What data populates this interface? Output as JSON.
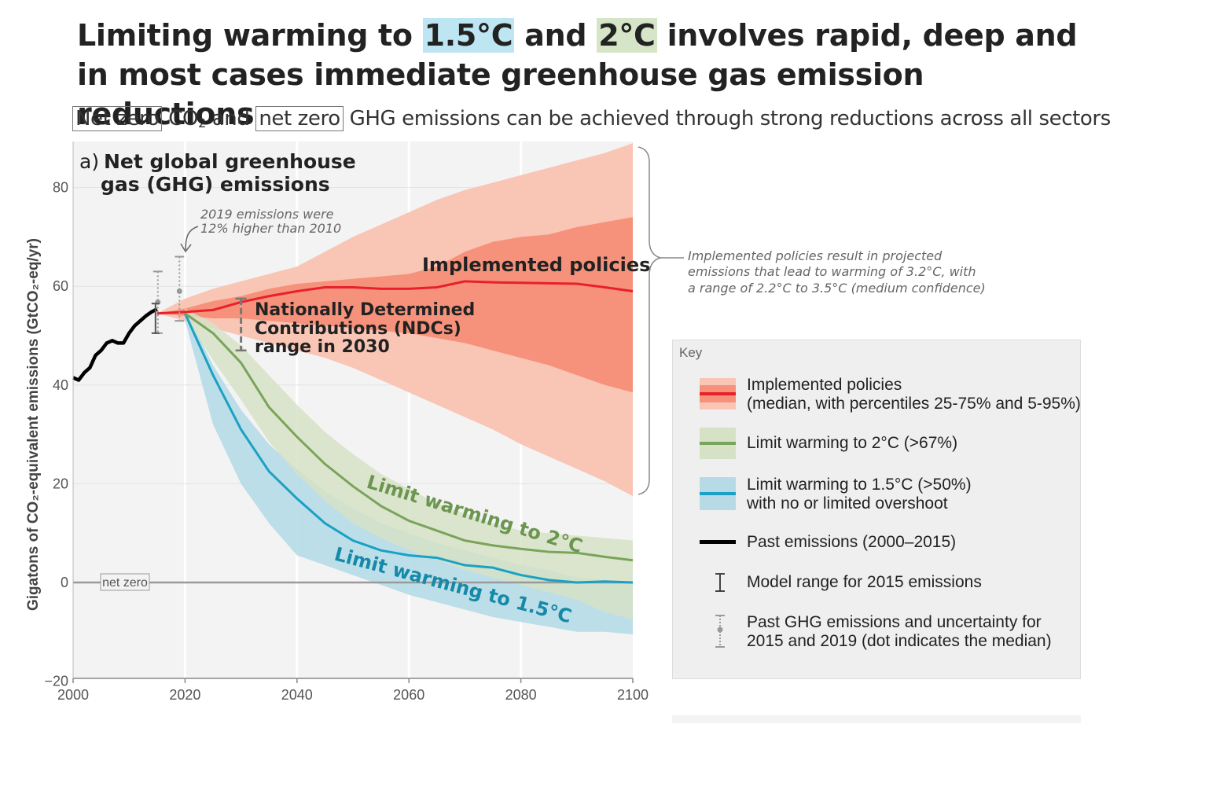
{
  "title": {
    "part1": "Limiting warming to ",
    "hl1": "1.5°C",
    "part2": " and ",
    "hl2": "2°C",
    "part3": " involves rapid, deep and",
    "line2": "in most cases immediate greenhouse gas emission reductions"
  },
  "subtitle": {
    "box1": "Net zero",
    "co2": "CO",
    "co2_sub": "2",
    "mid": " and ",
    "box2": "net zero",
    "rest": " GHG emissions can be achieved through strong reductions across all sectors"
  },
  "panel": {
    "label_prefix": "a)",
    "label_line1": "Net global greenhouse",
    "label_line2": "gas (GHG) emissions"
  },
  "annotations": {
    "emissions_2019_line1": "2019 emissions were",
    "emissions_2019_line2": "12% higher than 2010",
    "implemented_policies": "Implemented policies",
    "ndc_line1": "Nationally Determined",
    "ndc_line2": "Contributions (NDCs)",
    "ndc_line3": "range in 2030",
    "limit_2c": "Limit warming to 2°C",
    "limit_15c": "Limit warming to 1.5°C",
    "net_zero": "net zero",
    "brace_line1": "Implemented policies result in projected",
    "brace_line2": "emissions that lead to warming of 3.2°C, with",
    "brace_line3": "a range of 2.2°C to 3.5°C (medium confidence)"
  },
  "key": {
    "title": "Key",
    "items": [
      {
        "line1": "Implemented policies",
        "line2": "(median, with percentiles 25-75% and 5-95%)"
      },
      {
        "line1": "Limit warming to 2°C (>67%)",
        "line2": ""
      },
      {
        "line1": "Limit warming to 1.5°C (>50%)",
        "line2": "with no or limited overshoot"
      },
      {
        "line1": "Past emissions (2000–2015)",
        "line2": ""
      },
      {
        "line1": "Model range for 2015 emissions",
        "line2": ""
      },
      {
        "line1": "Past GHG emissions and uncertainty for",
        "line2": "2015 and 2019 (dot indicates the median)"
      }
    ]
  },
  "colors": {
    "policy_outer": "#f9c5b4",
    "policy_inner": "#f6927b",
    "policy_line": "#e8202a",
    "c2_band": "#d6e2c6",
    "c2_line": "#79a45a",
    "c15_band": "#b6dbe7",
    "c15_line": "#1ba1c3",
    "c2_label": "#6c9650",
    "c15_label": "#158aa8",
    "past": "#000000"
  },
  "chart_data": {
    "type": "area",
    "xlabel": "",
    "ylabel": "Gigatons of CO₂-equivalent emissions (GtCO₂-eq/yr)",
    "xlim": [
      2000,
      2100
    ],
    "ylim": [
      -20,
      90
    ],
    "xticks": [
      2000,
      2020,
      2040,
      2060,
      2080,
      2100
    ],
    "yticks": [
      -20,
      0,
      20,
      40,
      60,
      80
    ],
    "grid": true,
    "legend": "right",
    "past_emissions": {
      "x": [
        2000,
        2001,
        2002,
        2003,
        2004,
        2005,
        2006,
        2007,
        2008,
        2009,
        2010,
        2011,
        2012,
        2013,
        2014,
        2015
      ],
      "y": [
        41.5,
        41,
        42.5,
        43.5,
        46,
        47,
        48.5,
        49,
        48.5,
        48.5,
        50.5,
        52,
        53,
        54,
        54.8,
        55.4
      ]
    },
    "implemented_policies": {
      "x": [
        2015,
        2020,
        2025,
        2030,
        2035,
        2040,
        2045,
        2050,
        2055,
        2060,
        2065,
        2070,
        2075,
        2080,
        2085,
        2090,
        2095,
        2100
      ],
      "median": [
        54.5,
        54.8,
        55.2,
        56.8,
        58,
        59,
        59.8,
        59.8,
        59.5,
        59.5,
        59.8,
        61,
        60.8,
        60.7,
        60.6,
        60.5,
        59.8,
        59
      ],
      "p25": [
        54.5,
        54,
        53.5,
        53.5,
        53,
        52.5,
        52,
        51.5,
        51,
        50.5,
        49.5,
        48.5,
        47,
        45.5,
        44,
        42,
        40,
        38.5
      ],
      "p75": [
        54.5,
        55.5,
        57,
        58,
        59.5,
        60.5,
        61,
        61.5,
        62,
        62.5,
        64,
        67,
        69,
        70,
        70.5,
        72,
        73,
        74
      ],
      "p5": [
        54.5,
        53,
        51.5,
        50,
        48.5,
        47,
        45.5,
        43.5,
        41,
        38.5,
        36,
        33.5,
        31,
        28,
        25.5,
        23,
        20.5,
        17.5
      ],
      "p95": [
        54.5,
        57.5,
        59.5,
        61,
        62.5,
        64,
        67,
        70,
        72.5,
        75,
        77.5,
        79.5,
        81,
        82.5,
        84,
        85.5,
        87,
        89
      ]
    },
    "limit_2c": {
      "x": [
        2020,
        2025,
        2030,
        2035,
        2040,
        2045,
        2050,
        2055,
        2060,
        2065,
        2070,
        2075,
        2080,
        2085,
        2090,
        2095,
        2100
      ],
      "median": [
        54.5,
        50.5,
        44.5,
        35.5,
        29.5,
        24,
        19.5,
        15.5,
        12.5,
        10.5,
        8.5,
        7.5,
        6.8,
        6.2,
        6,
        5.2,
        4.5
      ],
      "low": [
        54,
        45,
        37,
        28.5,
        22,
        16.5,
        12,
        9,
        6.5,
        4.5,
        2.5,
        1,
        -0.5,
        -2,
        -3.5,
        -6,
        -7.5
      ],
      "high": [
        55.5,
        52.5,
        48,
        42,
        36,
        30.5,
        26,
        22,
        19,
        16,
        14,
        12,
        10.5,
        10,
        9.5,
        9,
        8.5
      ]
    },
    "limit_15c": {
      "x": [
        2020,
        2025,
        2030,
        2035,
        2040,
        2045,
        2050,
        2055,
        2060,
        2065,
        2070,
        2075,
        2080,
        2085,
        2090,
        2095,
        2100
      ],
      "median": [
        54.5,
        42,
        31,
        22.5,
        17,
        12,
        8.5,
        6.5,
        5.5,
        5,
        3.5,
        3,
        1.5,
        0.5,
        0,
        0.2,
        0
      ],
      "low": [
        53,
        32,
        20,
        12,
        5.5,
        3.5,
        1.5,
        -0.5,
        -2.5,
        -4,
        -5.5,
        -7,
        -8,
        -9,
        -10,
        -10,
        -10.5
      ],
      "high": [
        55.5,
        44,
        35,
        28,
        23,
        18.5,
        15,
        12,
        10,
        8,
        6.5,
        5,
        3.5,
        2.5,
        1,
        0.5,
        0
      ]
    },
    "model_range_2015": {
      "x": 2015,
      "low": 50.5,
      "high": 56.5,
      "median": 55.5
    },
    "past_uncertainty": [
      {
        "x": 2015,
        "low": 50.5,
        "high": 63,
        "median": 56.8
      },
      {
        "x": 2019,
        "low": 53,
        "high": 66,
        "median": 59
      }
    ],
    "ndc_2030": {
      "x": 2030,
      "low": 47,
      "high": 57.5
    }
  }
}
